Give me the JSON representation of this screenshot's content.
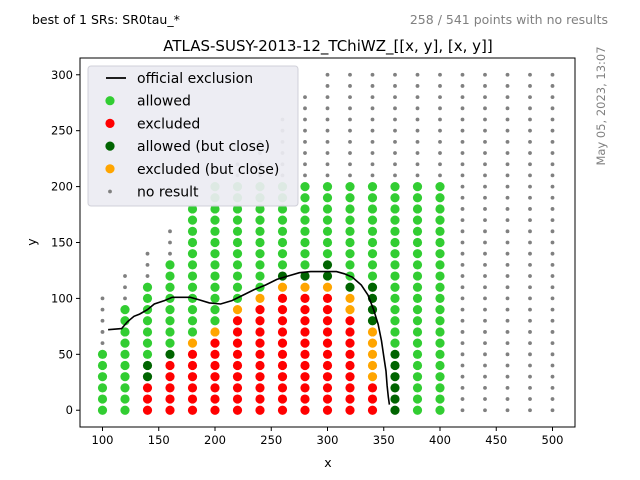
{
  "header": {
    "sr_label": "best of 1 SRs: SR0tau_*",
    "points_info": "258 / 541 points with no results",
    "timestamp": "May 05, 2023, 13:07"
  },
  "chart_data": {
    "type": "scatter",
    "title": "ATLAS-SUSY-2013-12_TChiWZ_[[x, y], [x, y]]",
    "xlabel": "x",
    "ylabel": "y",
    "xlim": [
      80,
      520
    ],
    "ylim": [
      -15,
      315
    ],
    "xticks": [
      100,
      150,
      200,
      250,
      300,
      350,
      400,
      450,
      500
    ],
    "yticks": [
      0,
      50,
      100,
      150,
      200,
      250,
      300
    ],
    "grid": false,
    "legend_position": "top-left",
    "colors": {
      "official": "#000000",
      "allowed": "#32cd32",
      "excluded": "#ff0000",
      "allowed_close": "#006400",
      "excluded_close": "#ffa500",
      "no_result": "#808080"
    },
    "legend": [
      {
        "key": "official",
        "label": "official exclusion",
        "marker": "line"
      },
      {
        "key": "allowed",
        "label": "allowed",
        "marker": "dot"
      },
      {
        "key": "excluded",
        "label": "excluded",
        "marker": "dot"
      },
      {
        "key": "allowed_close",
        "label": "allowed (but close)",
        "marker": "dot"
      },
      {
        "key": "excluded_close",
        "label": "excluded (but close)",
        "marker": "dot"
      },
      {
        "key": "no_result",
        "label": "no result",
        "marker": "small"
      }
    ],
    "grid_points": {
      "x_min": 100,
      "x_max": 500,
      "x_step": 20,
      "y_step": 10,
      "y_top_by_x": {
        "100": 100,
        "120": 120,
        "140": 140,
        "160": 160,
        "180": 180,
        "200": 200,
        "220": 220,
        "240": 240,
        "260": 260,
        "280": 280
      }
    },
    "result_columns": [
      {
        "x": 100,
        "allowed": [
          0,
          50
        ]
      },
      {
        "x": 120,
        "allowed": [
          0,
          90
        ]
      },
      {
        "x": 140,
        "excluded": [
          0,
          20
        ],
        "allowed_close": [
          30,
          40
        ],
        "allowed": [
          50,
          110
        ]
      },
      {
        "x": 160,
        "excluded": [
          0,
          40
        ],
        "allowed_close": [
          50,
          50
        ],
        "allowed": [
          60,
          130
        ]
      },
      {
        "x": 180,
        "excluded": [
          0,
          50
        ],
        "excluded_close": [
          60,
          60
        ],
        "allowed": [
          70,
          200
        ]
      },
      {
        "x": 200,
        "excluded": [
          0,
          60
        ],
        "excluded_close": [
          70,
          70
        ],
        "allowed": [
          80,
          200
        ]
      },
      {
        "x": 220,
        "excluded": [
          0,
          80
        ],
        "excluded_close": [
          90,
          90
        ],
        "allowed": [
          100,
          200
        ]
      },
      {
        "x": 240,
        "excluded": [
          0,
          90
        ],
        "excluded_close": [
          100,
          100
        ],
        "allowed": [
          110,
          200
        ]
      },
      {
        "x": 260,
        "excluded": [
          0,
          100
        ],
        "excluded_close": [
          110,
          110
        ],
        "allowed_close": [
          120,
          120
        ],
        "allowed": [
          130,
          200
        ]
      },
      {
        "x": 280,
        "excluded": [
          0,
          100
        ],
        "excluded_close": [
          110,
          110
        ],
        "allowed_close": [
          120,
          120
        ],
        "allowed": [
          130,
          200
        ]
      },
      {
        "x": 300,
        "excluded": [
          0,
          100
        ],
        "excluded_close": [
          110,
          110
        ],
        "allowed_close": [
          120,
          130
        ],
        "allowed": [
          140,
          200
        ]
      },
      {
        "x": 320,
        "excluded": [
          0,
          80
        ],
        "excluded_close": [
          90,
          100
        ],
        "allowed_close": [
          110,
          110
        ],
        "allowed": [
          120,
          200
        ]
      },
      {
        "x": 340,
        "excluded": [
          0,
          20
        ],
        "excluded_close": [
          30,
          70
        ],
        "allowed_close": [
          80,
          110
        ],
        "allowed": [
          120,
          200
        ]
      },
      {
        "x": 360,
        "allowed_close": [
          0,
          50
        ],
        "allowed": [
          60,
          200
        ]
      },
      {
        "x": 380,
        "allowed": [
          0,
          200
        ]
      },
      {
        "x": 400,
        "allowed": [
          0,
          200
        ]
      }
    ],
    "official_exclusion": {
      "x": [
        105,
        117,
        122,
        128,
        133,
        140,
        146,
        155,
        162,
        170,
        178,
        185,
        195,
        205,
        215,
        225,
        235,
        245,
        255,
        265,
        275,
        285,
        295,
        300,
        308,
        315,
        322,
        330,
        336,
        341,
        345,
        348,
        350,
        352,
        353,
        354,
        355
      ],
      "y": [
        72,
        73,
        79,
        84,
        86,
        90,
        95,
        98,
        101,
        101,
        101,
        99,
        96,
        95,
        98,
        103,
        108,
        112,
        117,
        120,
        123,
        124,
        124,
        124,
        124,
        122,
        119,
        112,
        103,
        90,
        77,
        62,
        48,
        35,
        22,
        12,
        5
      ]
    }
  }
}
